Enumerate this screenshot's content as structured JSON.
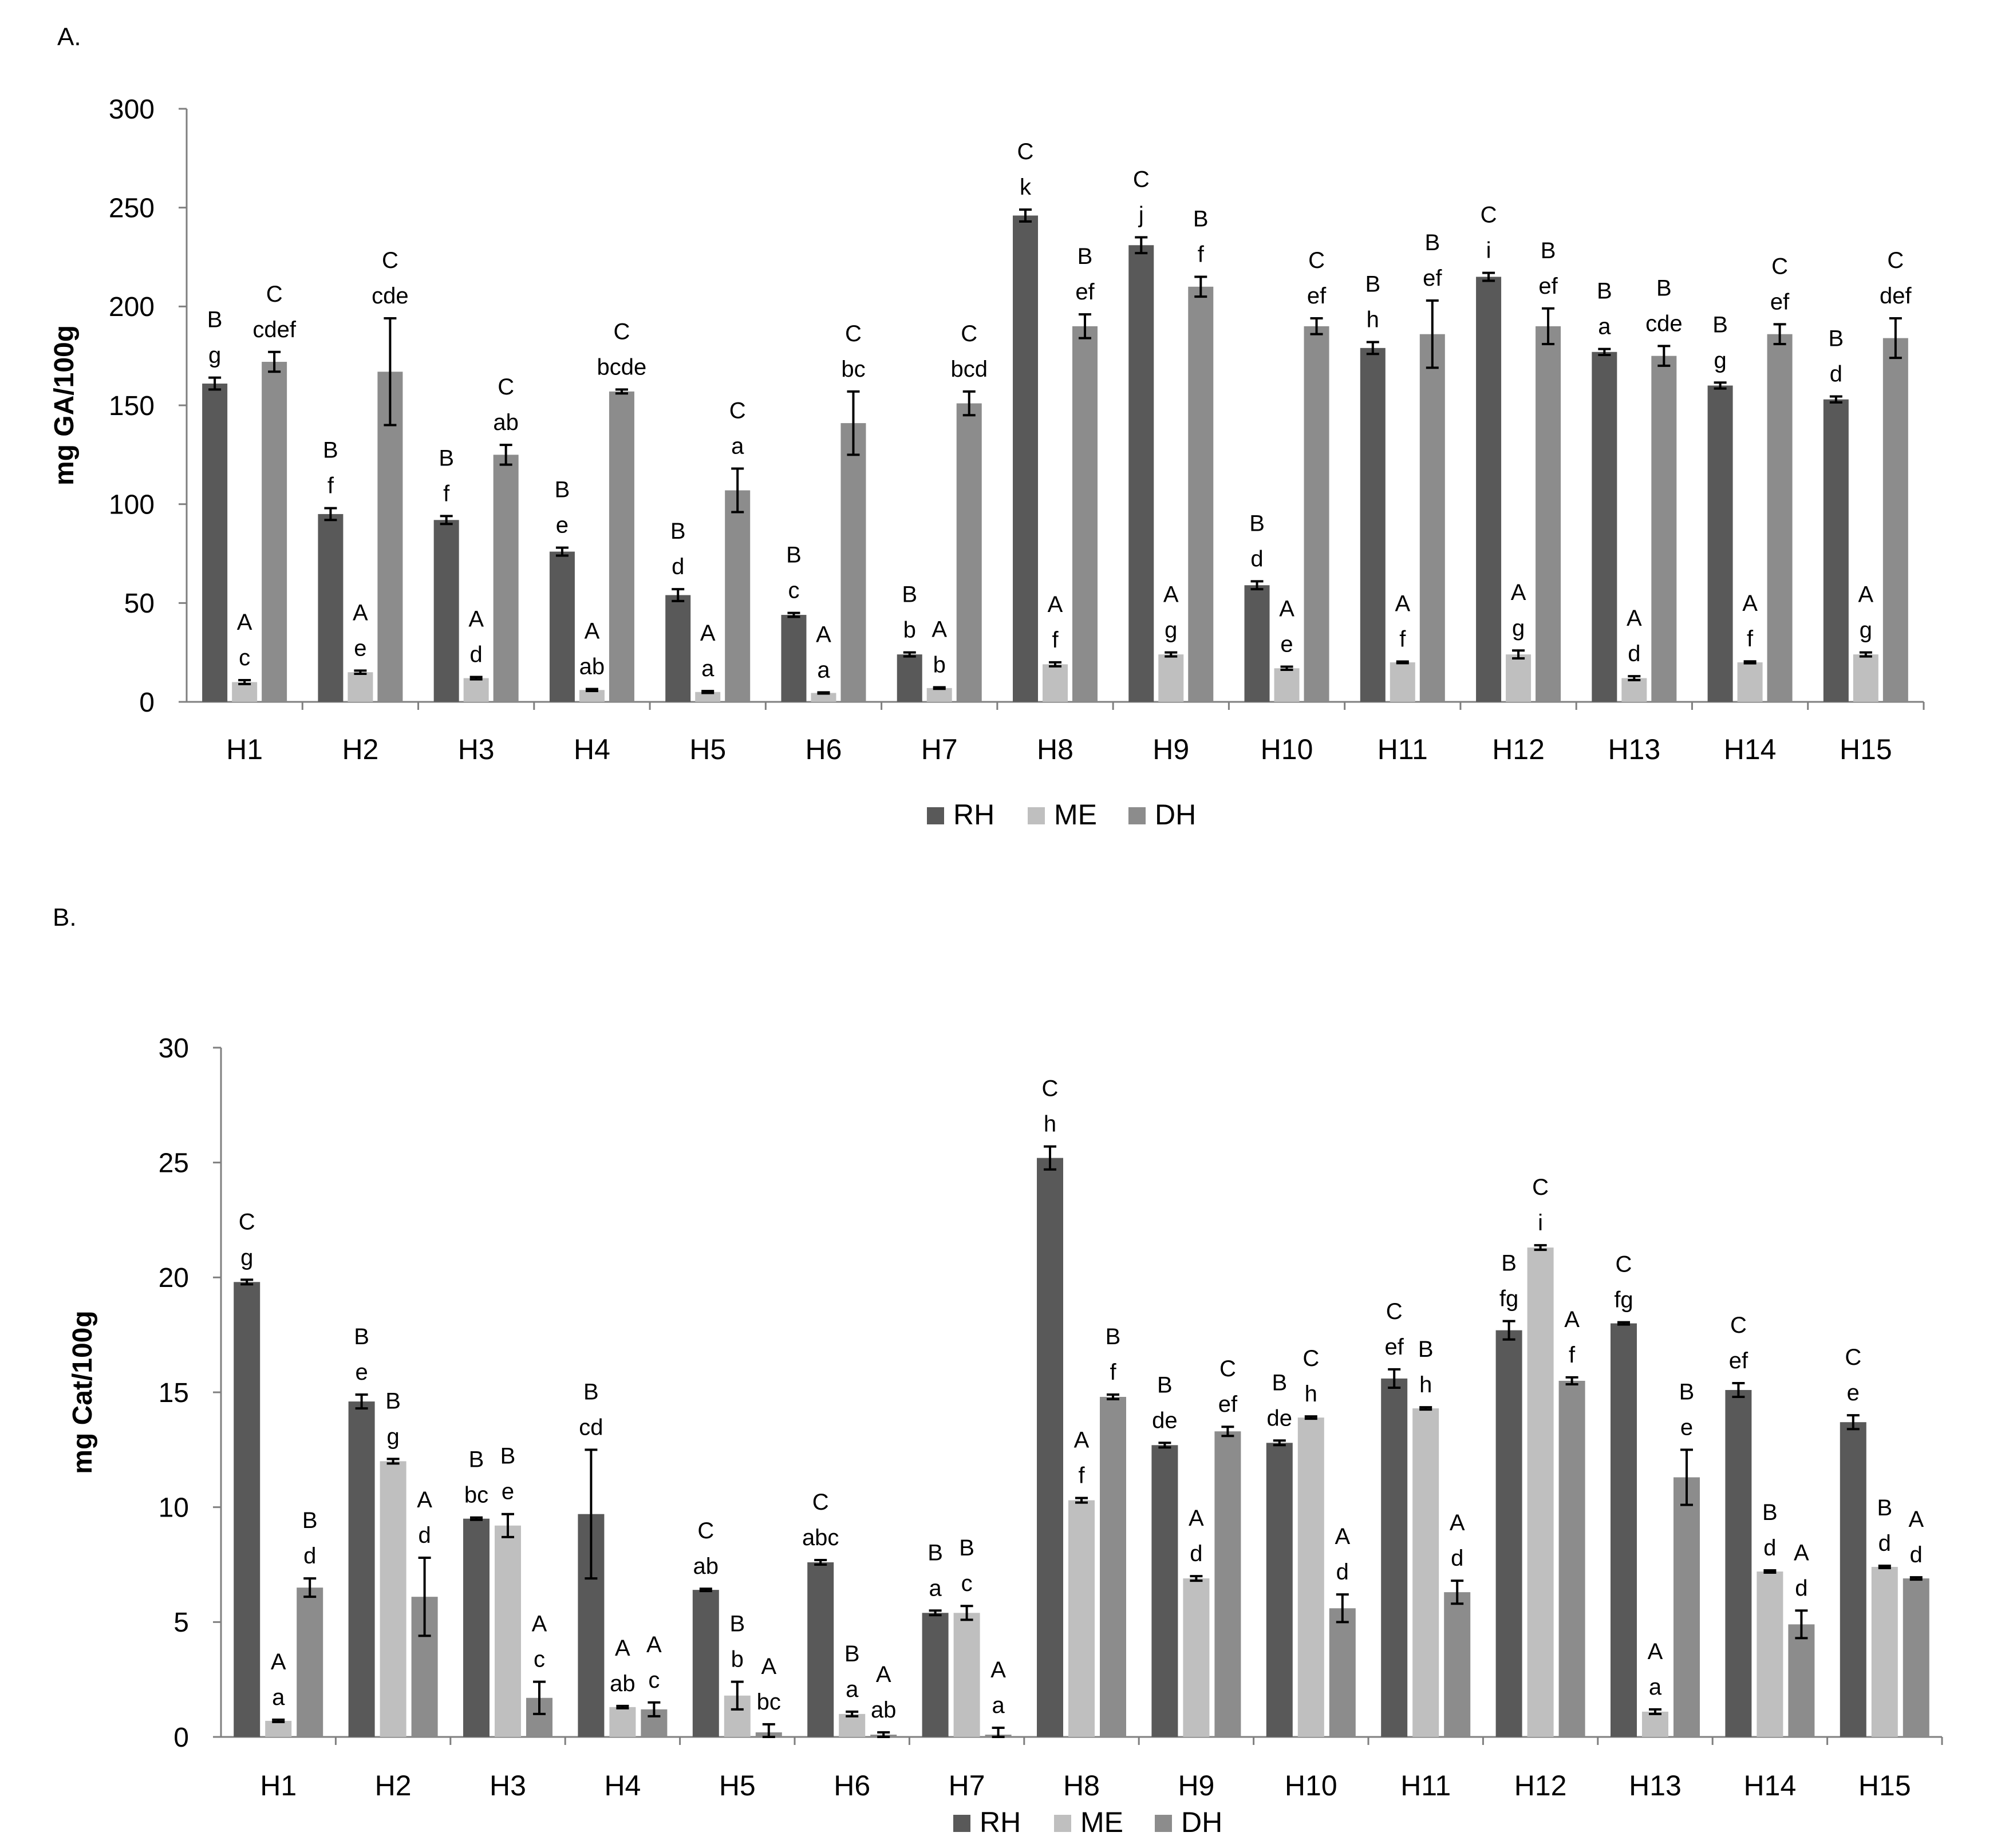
{
  "colors": {
    "RH": "#595959",
    "ME": "#bfbfbf",
    "DH": "#8c8c8c",
    "axis": "#7f7f7f",
    "error": "#000000"
  },
  "chart_data": [
    {
      "panel_label": "A.",
      "type": "bar",
      "ylabel": "mg GA/100g",
      "ylim": [
        0,
        300
      ],
      "yticks": [
        0,
        50,
        100,
        150,
        200,
        250,
        300
      ],
      "grid": false,
      "legend": "bottom-center",
      "categories": [
        "H1",
        "H2",
        "H3",
        "H4",
        "H5",
        "H6",
        "H7",
        "H8",
        "H9",
        "H10",
        "H11",
        "H12",
        "H13",
        "H14",
        "H15"
      ],
      "series": [
        {
          "name": "RH",
          "values": [
            161,
            95,
            92,
            76,
            54,
            44,
            24,
            246,
            231,
            59,
            179,
            215,
            177,
            160,
            153
          ],
          "errors": [
            3,
            3,
            2,
            2,
            3,
            1,
            1,
            3,
            4,
            2,
            3,
            2,
            1.5,
            1.5,
            1.5
          ],
          "labels": [
            [
              "B",
              "g"
            ],
            [
              "B",
              "f"
            ],
            [
              "B",
              "f"
            ],
            [
              "B",
              "e"
            ],
            [
              "B",
              "d"
            ],
            [
              "B",
              "c"
            ],
            [
              "B",
              "b"
            ],
            [
              "C",
              "k"
            ],
            [
              "C",
              "j"
            ],
            [
              "B",
              "d"
            ],
            [
              "B",
              "h"
            ],
            [
              "C",
              "i"
            ],
            [
              "B",
              "a"
            ],
            [
              "B",
              "g"
            ],
            [
              "B",
              "d"
            ]
          ]
        },
        {
          "name": "ME",
          "values": [
            10,
            15,
            12,
            6,
            5,
            4.5,
            7,
            19,
            24,
            17,
            20,
            24,
            12,
            20,
            24
          ],
          "errors": [
            1,
            0.8,
            0.6,
            0.5,
            0.5,
            0.3,
            0.4,
            1,
            1,
            0.8,
            0.4,
            2,
            1,
            0.5,
            1
          ],
          "labels": [
            [
              "A",
              "c"
            ],
            [
              "A",
              "e"
            ],
            [
              "A",
              "d"
            ],
            [
              "A",
              "ab"
            ],
            [
              "A",
              "a"
            ],
            [
              "A",
              "a"
            ],
            [
              "A",
              "b"
            ],
            [
              "A",
              "f"
            ],
            [
              "A",
              "g"
            ],
            [
              "A",
              "e"
            ],
            [
              "A",
              "f"
            ],
            [
              "A",
              "g"
            ],
            [
              "A",
              "d"
            ],
            [
              "A",
              "f"
            ],
            [
              "A",
              "g"
            ]
          ]
        },
        {
          "name": "DH",
          "values": [
            172,
            167,
            125,
            157,
            107,
            141,
            151,
            190,
            210,
            190,
            186,
            190,
            175,
            186,
            184
          ],
          "errors": [
            5,
            27,
            5,
            1,
            11,
            16,
            6,
            6,
            5,
            4,
            17,
            9,
            5,
            5,
            10
          ],
          "labels": [
            [
              "C",
              "cdef"
            ],
            [
              "C",
              "cde"
            ],
            [
              "C",
              "ab"
            ],
            [
              "C",
              "bcde"
            ],
            [
              "C",
              "a"
            ],
            [
              "C",
              "bc"
            ],
            [
              "C",
              "bcd"
            ],
            [
              "B",
              "ef"
            ],
            [
              "B",
              "f"
            ],
            [
              "C",
              "ef"
            ],
            [
              "B",
              "ef"
            ],
            [
              "B",
              "ef"
            ],
            [
              "B",
              "cde"
            ],
            [
              "C",
              "ef"
            ],
            [
              "C",
              "def"
            ]
          ]
        }
      ]
    },
    {
      "panel_label": "B.",
      "type": "bar",
      "ylabel": "mg Cat/100g",
      "ylim": [
        0,
        30
      ],
      "yticks": [
        0,
        5,
        10,
        15,
        20,
        25,
        30
      ],
      "grid": false,
      "legend": "bottom-center",
      "categories": [
        "H1",
        "H2",
        "H3",
        "H4",
        "H5",
        "H6",
        "H7",
        "H8",
        "H9",
        "H10",
        "H11",
        "H12",
        "H13",
        "H14",
        "H15"
      ],
      "series": [
        {
          "name": "RH",
          "values": [
            19.8,
            14.6,
            9.5,
            9.7,
            6.4,
            7.6,
            5.4,
            25.2,
            12.7,
            12.8,
            15.6,
            17.7,
            18.0,
            15.1,
            13.7
          ],
          "errors": [
            0.1,
            0.3,
            0.05,
            2.8,
            0.05,
            0.1,
            0.1,
            0.5,
            0.1,
            0.1,
            0.4,
            0.4,
            0.05,
            0.3,
            0.3
          ],
          "labels": [
            [
              "C",
              "g"
            ],
            [
              "B",
              "e"
            ],
            [
              "B",
              "bc"
            ],
            [
              "B",
              "cd"
            ],
            [
              "C",
              "ab"
            ],
            [
              "C",
              "abc"
            ],
            [
              "B",
              "a"
            ],
            [
              "C",
              "h"
            ],
            [
              "B",
              "de"
            ],
            [
              "B",
              "de"
            ],
            [
              "C",
              "ef"
            ],
            [
              "B",
              "fg"
            ],
            [
              "C",
              "fg"
            ],
            [
              "C",
              "ef"
            ],
            [
              "C",
              "e"
            ]
          ]
        },
        {
          "name": "ME",
          "values": [
            0.7,
            12.0,
            9.2,
            1.3,
            1.8,
            1.0,
            5.4,
            10.3,
            6.9,
            13.9,
            14.3,
            21.3,
            1.1,
            7.2,
            7.4
          ],
          "errors": [
            0.05,
            0.1,
            0.5,
            0.05,
            0.6,
            0.1,
            0.3,
            0.1,
            0.1,
            0.05,
            0.05,
            0.1,
            0.1,
            0.05,
            0.05
          ],
          "labels": [
            [
              "A",
              "a"
            ],
            [
              "B",
              "g"
            ],
            [
              "B",
              "e"
            ],
            [
              "A",
              "ab"
            ],
            [
              "B",
              "b"
            ],
            [
              "B",
              "a"
            ],
            [
              "B",
              "c"
            ],
            [
              "A",
              "f"
            ],
            [
              "A",
              "d"
            ],
            [
              "C",
              "h"
            ],
            [
              "B",
              "h"
            ],
            [
              "C",
              "i"
            ],
            [
              "A",
              "a"
            ],
            [
              "B",
              "d"
            ],
            [
              "B",
              "d"
            ]
          ]
        },
        {
          "name": "DH",
          "values": [
            6.5,
            6.1,
            1.7,
            1.2,
            0.2,
            0.1,
            0.1,
            14.8,
            13.3,
            5.6,
            6.3,
            15.5,
            11.3,
            4.9,
            6.9
          ],
          "errors": [
            0.4,
            1.7,
            0.7,
            0.3,
            0.35,
            0.1,
            0.3,
            0.1,
            0.2,
            0.6,
            0.5,
            0.15,
            1.2,
            0.6,
            0.05
          ],
          "labels": [
            [
              "B",
              "d"
            ],
            [
              "A",
              "d"
            ],
            [
              "A",
              "c"
            ],
            [
              "A",
              "c"
            ],
            [
              "A",
              "bc"
            ],
            [
              "A",
              "ab"
            ],
            [
              "A",
              "a"
            ],
            [
              "B",
              "f"
            ],
            [
              "C",
              "ef"
            ],
            [
              "A",
              "d"
            ],
            [
              "A",
              "d"
            ],
            [
              "A",
              "f"
            ],
            [
              "B",
              "e"
            ],
            [
              "A",
              "d"
            ],
            [
              "A",
              "d"
            ]
          ]
        }
      ]
    }
  ]
}
